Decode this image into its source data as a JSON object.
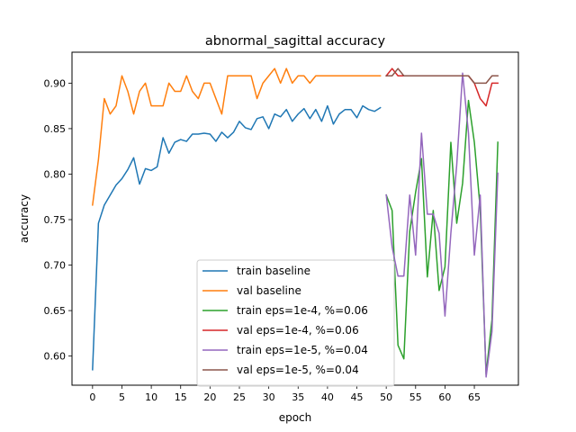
{
  "chart_data": {
    "type": "line",
    "title": "abnormal_sagittal accuracy",
    "xlabel": "epoch",
    "ylabel": "accuracy",
    "xlim": [
      -3.5,
      72.5
    ],
    "ylim": [
      0.568,
      0.934
    ],
    "xticks": [
      0,
      5,
      10,
      15,
      20,
      25,
      30,
      35,
      40,
      45,
      50,
      55,
      60,
      65
    ],
    "yticks": [
      0.6,
      0.65,
      0.7,
      0.75,
      0.8,
      0.85,
      0.9
    ],
    "xtick_labels": [
      "0",
      "5",
      "10",
      "15",
      "20",
      "25",
      "30",
      "35",
      "40",
      "45",
      "50",
      "55",
      "60",
      "65"
    ],
    "ytick_labels": [
      "0.60",
      "0.65",
      "0.70",
      "0.75",
      "0.80",
      "0.85",
      "0.90"
    ],
    "grid": false,
    "legend_position": "lower-center",
    "series": [
      {
        "name": "train baseline",
        "color": "#1f77b4",
        "x": [
          0,
          1,
          2,
          3,
          4,
          5,
          6,
          7,
          8,
          9,
          10,
          11,
          12,
          13,
          14,
          15,
          16,
          17,
          18,
          19,
          20,
          21,
          22,
          23,
          24,
          25,
          26,
          27,
          28,
          29,
          30,
          31,
          32,
          33,
          34,
          35,
          36,
          37,
          38,
          39,
          40,
          41,
          42,
          43,
          44,
          45,
          46,
          47,
          48,
          49
        ],
        "y": [
          0.585,
          0.746,
          0.766,
          0.777,
          0.788,
          0.795,
          0.805,
          0.818,
          0.789,
          0.806,
          0.804,
          0.808,
          0.84,
          0.823,
          0.835,
          0.838,
          0.836,
          0.844,
          0.844,
          0.845,
          0.844,
          0.836,
          0.846,
          0.84,
          0.846,
          0.858,
          0.851,
          0.849,
          0.861,
          0.863,
          0.85,
          0.866,
          0.863,
          0.871,
          0.858,
          0.866,
          0.872,
          0.861,
          0.871,
          0.858,
          0.875,
          0.855,
          0.866,
          0.871,
          0.871,
          0.862,
          0.875,
          0.871,
          0.869,
          0.873
        ]
      },
      {
        "name": "val baseline",
        "color": "#ff7f0e",
        "x": [
          0,
          1,
          2,
          3,
          4,
          5,
          6,
          7,
          8,
          9,
          10,
          11,
          12,
          13,
          14,
          15,
          16,
          17,
          18,
          19,
          20,
          21,
          22,
          23,
          24,
          25,
          26,
          27,
          28,
          29,
          30,
          31,
          32,
          33,
          34,
          35,
          36,
          37,
          38,
          39,
          40,
          41,
          42,
          43,
          44,
          45,
          46,
          47,
          48,
          49
        ],
        "y": [
          0.766,
          0.816,
          0.883,
          0.866,
          0.875,
          0.908,
          0.891,
          0.866,
          0.891,
          0.9,
          0.875,
          0.875,
          0.875,
          0.9,
          0.891,
          0.891,
          0.908,
          0.891,
          0.883,
          0.9,
          0.9,
          0.883,
          0.866,
          0.908,
          0.908,
          0.908,
          0.908,
          0.908,
          0.883,
          0.9,
          0.908,
          0.916,
          0.9,
          0.916,
          0.9,
          0.908,
          0.908,
          0.9,
          0.908,
          0.908,
          0.908,
          0.908,
          0.908,
          0.908,
          0.908,
          0.908,
          0.908,
          0.908,
          0.908,
          0.908
        ]
      },
      {
        "name": "train eps=1e-4, %=0.06",
        "color": "#2ca02c",
        "x": [
          50,
          51,
          52,
          53,
          54,
          55,
          56,
          57,
          58,
          59,
          60,
          61,
          62,
          63,
          64,
          65,
          66,
          67,
          68,
          69
        ],
        "y": [
          0.777,
          0.76,
          0.612,
          0.597,
          0.737,
          0.78,
          0.817,
          0.687,
          0.76,
          0.672,
          0.698,
          0.835,
          0.746,
          0.79,
          0.881,
          0.835,
          0.762,
          0.58,
          0.64,
          0.835
        ]
      },
      {
        "name": "val eps=1e-4, %=0.06",
        "color": "#d62728",
        "x": [
          50,
          51,
          52,
          53,
          54,
          55,
          56,
          57,
          58,
          59,
          60,
          61,
          62,
          63,
          64,
          65,
          66,
          67,
          68,
          69
        ],
        "y": [
          0.908,
          0.916,
          0.908,
          0.908,
          0.908,
          0.908,
          0.908,
          0.908,
          0.908,
          0.908,
          0.908,
          0.908,
          0.908,
          0.908,
          0.908,
          0.9,
          0.883,
          0.875,
          0.9,
          0.9
        ]
      },
      {
        "name": "train eps=1e-5, %=0.04",
        "color": "#9467bd",
        "x": [
          50,
          51,
          52,
          53,
          54,
          55,
          56,
          57,
          58,
          59,
          60,
          61,
          62,
          63,
          64,
          65,
          66,
          67,
          68,
          69
        ],
        "y": [
          0.777,
          0.72,
          0.688,
          0.688,
          0.777,
          0.711,
          0.845,
          0.756,
          0.756,
          0.735,
          0.644,
          0.735,
          0.81,
          0.911,
          0.845,
          0.711,
          0.777,
          0.577,
          0.627,
          0.801
        ]
      },
      {
        "name": "val eps=1e-5, %=0.04",
        "color": "#8c564b",
        "x": [
          50,
          51,
          52,
          53,
          54,
          55,
          56,
          57,
          58,
          59,
          60,
          61,
          62,
          63,
          64,
          65,
          66,
          67,
          68,
          69
        ],
        "y": [
          0.908,
          0.908,
          0.916,
          0.908,
          0.908,
          0.908,
          0.908,
          0.908,
          0.908,
          0.908,
          0.908,
          0.908,
          0.908,
          0.908,
          0.908,
          0.9,
          0.9,
          0.9,
          0.908,
          0.908
        ]
      }
    ]
  }
}
